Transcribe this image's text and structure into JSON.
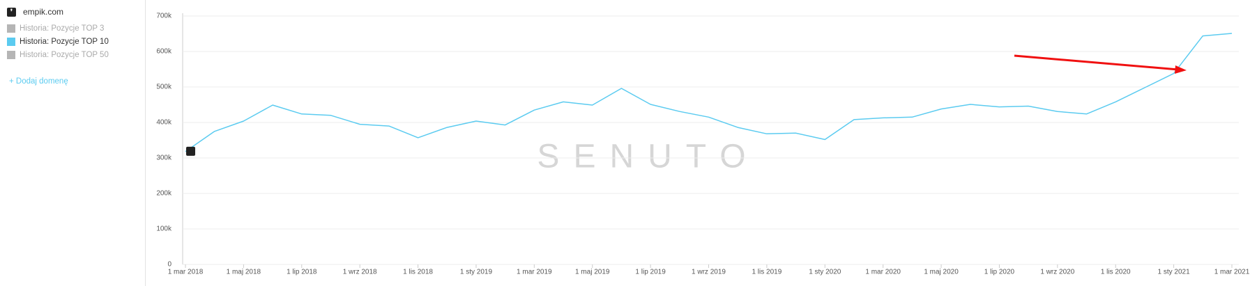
{
  "sidebar": {
    "domain": "empik.com",
    "items": [
      {
        "label": "Historia: Pozycje TOP 3",
        "color": "#b5b5b5"
      },
      {
        "label": "Historia: Pozycje TOP 10",
        "color": "#5bcbf0"
      },
      {
        "label": "Historia: Pozycje TOP 50",
        "color": "#b5b5b5"
      }
    ],
    "add": "Dodaj domenę"
  },
  "chart_data": {
    "type": "line",
    "watermark": "SENUTO",
    "categories": [
      "1 mar 2018",
      null,
      "1 maj 2018",
      null,
      "1 lip 2018",
      null,
      "1 wrz 2018",
      null,
      "1 lis 2018",
      null,
      "1 sty 2019",
      null,
      "1 mar 2019",
      null,
      "1 maj 2019",
      null,
      "1 lip 2019",
      null,
      "1 wrz 2019",
      null,
      "1 lis 2019",
      null,
      "1 sty 2020",
      null,
      "1 mar 2020",
      null,
      "1 maj 2020",
      null,
      "1 lip 2020",
      null,
      "1 wrz 2020",
      null,
      "1 lis 2020",
      null,
      "1 sty 2021",
      null,
      "1 mar 2021"
    ],
    "series": [
      {
        "name": "Historia: Pozycje TOP 10",
        "color": "#5bcbf0",
        "values": [
          318000,
          375000,
          404000,
          449000,
          424000,
          420000,
          395000,
          390000,
          357000,
          386000,
          404000,
          393000,
          435000,
          458000,
          449000,
          496000,
          451000,
          431000,
          415000,
          386000,
          368000,
          370000,
          352000,
          408000,
          413000,
          415000,
          438000,
          451000,
          444000,
          446000,
          431000,
          424000,
          458000,
          498000,
          538000,
          644000,
          651000
        ]
      }
    ],
    "ylim": [
      0,
      700000
    ],
    "yticks": [
      0,
      {
        "value": 100000,
        "label": "100k"
      },
      {
        "value": 200000,
        "label": "200k"
      },
      {
        "value": 300000,
        "label": "300k"
      },
      {
        "value": 400000,
        "label": "400k"
      },
      {
        "value": 500000,
        "label": "500k"
      },
      {
        "value": 600000,
        "label": "600k"
      },
      {
        "value": 700000,
        "label": "700k"
      }
    ],
    "grid": true
  }
}
